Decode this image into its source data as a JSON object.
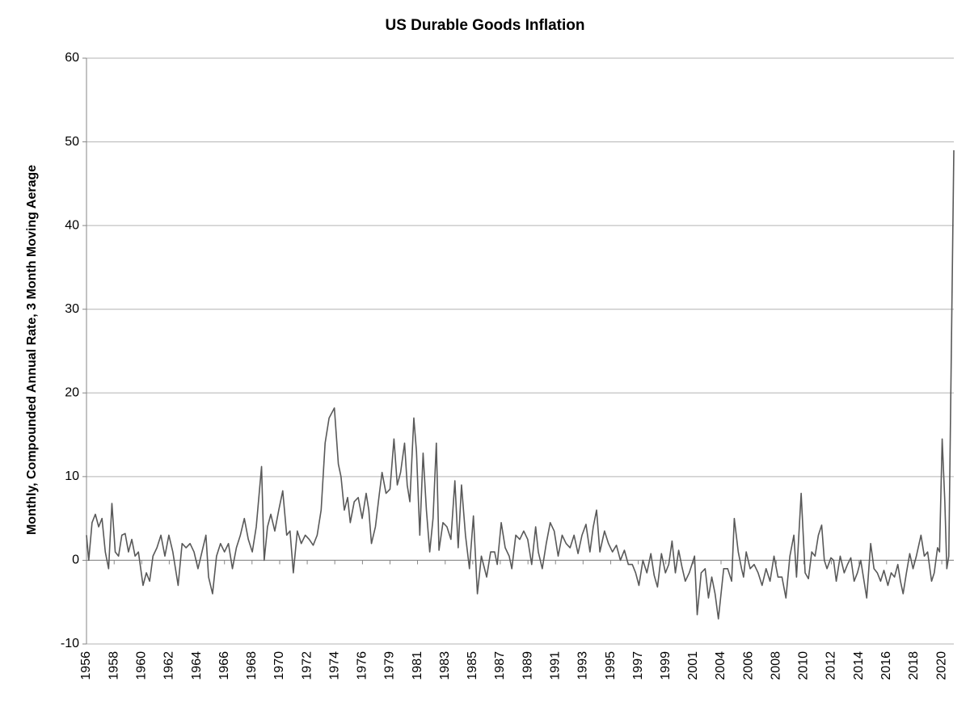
{
  "chart_data": {
    "type": "line",
    "title": "US Durable Goods Inflation",
    "y_label": "Monthly, Compounded Annual Rate, 3 Month Moving Aerage",
    "xlim": [
      1956.08,
      2021.58
    ],
    "ylim": [
      -10,
      60
    ],
    "yticks": [
      -10,
      0,
      10,
      20,
      30,
      40,
      50,
      60
    ],
    "xticks": [
      {
        "value": 1956.08,
        "label": "1956"
      },
      {
        "value": 1958.17,
        "label": "1958"
      },
      {
        "value": 1960.25,
        "label": "1960"
      },
      {
        "value": 1962.33,
        "label": "1962"
      },
      {
        "value": 1964.42,
        "label": "1964"
      },
      {
        "value": 1966.5,
        "label": "1966"
      },
      {
        "value": 1968.58,
        "label": "1968"
      },
      {
        "value": 1970.67,
        "label": "1970"
      },
      {
        "value": 1972.75,
        "label": "1972"
      },
      {
        "value": 1974.83,
        "label": "1974"
      },
      {
        "value": 1976.92,
        "label": "1976"
      },
      {
        "value": 1979.0,
        "label": "1979"
      },
      {
        "value": 1981.08,
        "label": "1981"
      },
      {
        "value": 1983.17,
        "label": "1983"
      },
      {
        "value": 1985.25,
        "label": "1985"
      },
      {
        "value": 1987.33,
        "label": "1987"
      },
      {
        "value": 1989.42,
        "label": "1989"
      },
      {
        "value": 1991.5,
        "label": "1991"
      },
      {
        "value": 1993.58,
        "label": "1993"
      },
      {
        "value": 1995.67,
        "label": "1995"
      },
      {
        "value": 1997.75,
        "label": "1997"
      },
      {
        "value": 1999.83,
        "label": "1999"
      },
      {
        "value": 2001.92,
        "label": "2001"
      },
      {
        "value": 2004.0,
        "label": "2004"
      },
      {
        "value": 2006.08,
        "label": "2006"
      },
      {
        "value": 2008.17,
        "label": "2008"
      },
      {
        "value": 2010.25,
        "label": "2010"
      },
      {
        "value": 2012.33,
        "label": "2012"
      },
      {
        "value": 2014.42,
        "label": "2014"
      },
      {
        "value": 2016.5,
        "label": "2016"
      },
      {
        "value": 2018.58,
        "label": "2018"
      },
      {
        "value": 2020.67,
        "label": "2020"
      }
    ],
    "grid": true,
    "color": "#595959",
    "x": [
      1956.08,
      1956.25,
      1956.5,
      1956.75,
      1957.0,
      1957.25,
      1957.5,
      1957.75,
      1958.0,
      1958.25,
      1958.5,
      1958.75,
      1959.0,
      1959.25,
      1959.5,
      1959.75,
      1960.0,
      1960.35,
      1960.6,
      1960.85,
      1961.1,
      1961.4,
      1961.7,
      1962.0,
      1962.3,
      1962.6,
      1963.0,
      1963.3,
      1963.6,
      1963.9,
      1964.2,
      1964.5,
      1964.8,
      1965.1,
      1965.3,
      1965.6,
      1965.9,
      1966.2,
      1966.5,
      1966.8,
      1967.1,
      1967.4,
      1967.7,
      1968.0,
      1968.3,
      1968.6,
      1968.9,
      1969.3,
      1969.5,
      1969.75,
      1970.0,
      1970.3,
      1970.6,
      1970.9,
      1971.2,
      1971.45,
      1971.7,
      1972.0,
      1972.3,
      1972.6,
      1972.9,
      1973.2,
      1973.5,
      1973.8,
      1974.1,
      1974.4,
      1974.8,
      1975.1,
      1975.3,
      1975.55,
      1975.8,
      1976.0,
      1976.3,
      1976.6,
      1976.9,
      1977.2,
      1977.4,
      1977.6,
      1977.9,
      1978.2,
      1978.4,
      1978.7,
      1979.0,
      1979.3,
      1979.55,
      1979.8,
      1980.1,
      1980.3,
      1980.5,
      1980.8,
      1981.0,
      1981.25,
      1981.5,
      1981.75,
      1982.0,
      1982.25,
      1982.5,
      1982.7,
      1983.0,
      1983.3,
      1983.6,
      1983.9,
      1984.15,
      1984.4,
      1984.7,
      1985.0,
      1985.3,
      1985.6,
      1985.9,
      1986.3,
      1986.6,
      1986.9,
      1987.1,
      1987.4,
      1987.7,
      1988.0,
      1988.2,
      1988.5,
      1988.8,
      1989.1,
      1989.4,
      1989.7,
      1990.0,
      1990.2,
      1990.5,
      1990.8,
      1991.1,
      1991.4,
      1991.7,
      1992.0,
      1992.3,
      1992.6,
      1992.9,
      1993.2,
      1993.5,
      1993.8,
      1994.1,
      1994.35,
      1994.6,
      1994.85,
      1995.2,
      1995.5,
      1995.8,
      1996.1,
      1996.4,
      1996.7,
      1997.0,
      1997.3,
      1997.55,
      1997.8,
      1998.1,
      1998.4,
      1998.7,
      1998.95,
      1999.2,
      1999.5,
      1999.8,
      2000.05,
      2000.3,
      2000.55,
      2000.8,
      2001.05,
      2001.3,
      2001.6,
      2002.0,
      2002.2,
      2002.5,
      2002.8,
      2003.05,
      2003.3,
      2003.55,
      2003.8,
      2004.2,
      2004.5,
      2004.8,
      2005.0,
      2005.3,
      2005.55,
      2005.7,
      2005.9,
      2006.2,
      2006.5,
      2006.8,
      2007.1,
      2007.4,
      2007.7,
      2008.0,
      2008.3,
      2008.6,
      2008.9,
      2009.2,
      2009.5,
      2009.7,
      2010.05,
      2010.35,
      2010.6,
      2010.85,
      2011.1,
      2011.35,
      2011.6,
      2011.8,
      2012.0,
      2012.3,
      2012.5,
      2012.7,
      2013.0,
      2013.3,
      2013.55,
      2013.8,
      2014.05,
      2014.3,
      2014.55,
      2014.75,
      2015.0,
      2015.3,
      2015.55,
      2015.8,
      2016.05,
      2016.3,
      2016.6,
      2016.85,
      2017.1,
      2017.35,
      2017.55,
      2017.75,
      2018.0,
      2018.25,
      2018.5,
      2018.75,
      2019.1,
      2019.35,
      2019.6,
      2019.9,
      2020.1,
      2020.35,
      2020.5,
      2020.7,
      2020.9,
      2021.05,
      2021.2,
      2021.58
    ],
    "values": [
      3,
      0,
      4.5,
      5.5,
      4,
      5,
      1,
      -1,
      6.8,
      1,
      0.5,
      3,
      3.2,
      1,
      2.5,
      0.5,
      1,
      -3,
      -1.5,
      -2.5,
      0.5,
      1.5,
      3,
      0.5,
      3,
      1,
      -3,
      2,
      1.5,
      2,
      1,
      -1,
      1,
      3,
      -2,
      -4,
      0.5,
      2,
      1,
      2,
      -1,
      1.5,
      3,
      5,
      2.5,
      1,
      4,
      11.2,
      0,
      4,
      5.5,
      3.5,
      6,
      8.3,
      3,
      3.5,
      -1.5,
      3.5,
      2,
      3,
      2.5,
      1.8,
      3,
      6,
      14,
      17,
      18.2,
      11.5,
      10,
      6,
      7.5,
      4.5,
      7,
      7.5,
      5,
      8,
      6,
      2,
      4,
      8,
      10.5,
      8,
      8.5,
      14.5,
      9,
      10.5,
      14,
      9,
      7,
      17,
      13,
      3,
      12.8,
      6,
      1,
      5,
      14,
      1.2,
      4.5,
      4,
      2.5,
      9.5,
      1.5,
      9,
      3,
      -1,
      5.3,
      -4,
      0.5,
      -2,
      1,
      1,
      -0.5,
      4.5,
      1.5,
      0.5,
      -1,
      3,
      2.5,
      3.5,
      2.5,
      -0.5,
      4,
      1,
      -1,
      2,
      4.5,
      3.5,
      0.5,
      3,
      2,
      1.5,
      3,
      0.8,
      3,
      4.3,
      1,
      4,
      6,
      1,
      3.5,
      2,
      1,
      1.8,
      0,
      1.2,
      -0.5,
      -0.5,
      -1.5,
      -3,
      0,
      -1.5,
      0.8,
      -1.8,
      -3.2,
      0.8,
      -1.5,
      -0.5,
      2.3,
      -1.5,
      1.2,
      -0.8,
      -2.5,
      -1.5,
      0.5,
      -6.5,
      -1.5,
      -1,
      -4.5,
      -2,
      -4,
      -7,
      -1,
      -1,
      -2.5,
      5,
      1,
      -1,
      -2,
      1,
      -1,
      -0.5,
      -1.5,
      -3,
      -1,
      -2.5,
      0.5,
      -2,
      -2,
      -4.5,
      0.5,
      3,
      -2,
      8,
      -1.5,
      -2.2,
      1,
      0.5,
      3,
      4.2,
      0,
      -1,
      0.3,
      0,
      -2.5,
      0.5,
      -1.5,
      -0.5,
      0.3,
      -2.5,
      -1.5,
      0,
      -2,
      -4.5,
      2,
      -1,
      -1.5,
      -2.5,
      -1.2,
      -3,
      -1.5,
      -2,
      -0.5,
      -2.5,
      -4,
      -1.5,
      0.8,
      -1,
      0.5,
      3,
      0.5,
      1,
      -2.5,
      -1.5,
      1.5,
      1,
      14.5,
      7,
      -1,
      0.5,
      49
    ]
  }
}
